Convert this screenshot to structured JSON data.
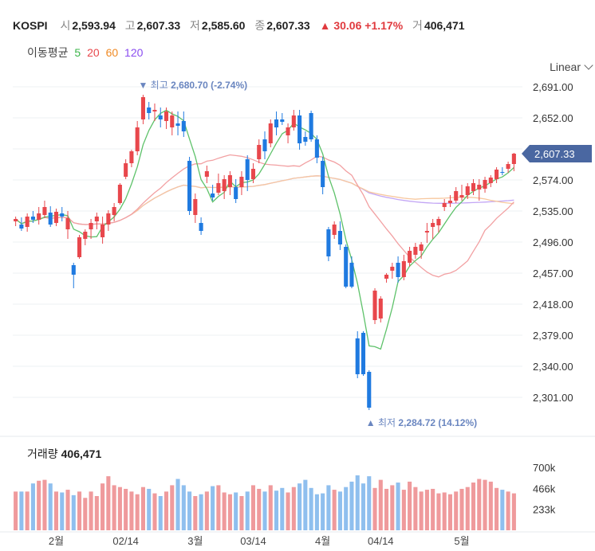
{
  "header": {
    "symbol": "KOSPI",
    "open_label": "시",
    "open": "2,593.94",
    "high_label": "고",
    "high": "2,607.33",
    "low_label": "저",
    "low": "2,585.60",
    "close_label": "종",
    "close": "2,607.33",
    "change_arrow": "▲",
    "change": "30.06",
    "change_pct": "+1.17%",
    "volume_label": "거",
    "volume": "406,471"
  },
  "ma_legend": {
    "label": "이동평균",
    "periods": [
      {
        "text": "5",
        "color": "#3bb54a"
      },
      {
        "text": "20",
        "color": "#e8474c"
      },
      {
        "text": "60",
        "color": "#f08a24"
      },
      {
        "text": "120",
        "color": "#8a4df0"
      }
    ]
  },
  "scale_selector": {
    "label": "Linear"
  },
  "price_badge": "2,607.33",
  "annotations": {
    "high": {
      "arrow": "▼",
      "label": "최고",
      "value": "2,680.70 (-2.74%)"
    },
    "low": {
      "arrow": "▲",
      "label": "최저",
      "value": "2,284.72 (14.12%)"
    }
  },
  "volume_panel": {
    "label": "거래량",
    "value": "406,471"
  },
  "colors": {
    "up": "#e8474c",
    "down": "#1f7ae0",
    "vol_up": "#ef9a9c",
    "vol_down": "#8fbfee",
    "ma5": "#5ec26a",
    "ma20": "#f2a0a2",
    "ma60": "#f7c79e",
    "ma120": "#c3a6f5",
    "badge": "#4a67a1",
    "annotation": "#6a86c0"
  },
  "chart_data": {
    "type": "candlestick",
    "price_axis": {
      "ticks": [
        2691,
        2652,
        2613,
        2574,
        2535,
        2496,
        2457,
        2418,
        2379,
        2340,
        2301
      ],
      "tick_labels": [
        "2,691.00",
        "2,652.00",
        "2,613.00",
        "2,574.00",
        "2,535.00",
        "2,496.00",
        "2,457.00",
        "2,418.00",
        "2,379.00",
        "2,340.00",
        "2,301.00"
      ]
    },
    "volume_axis": {
      "ticks": [
        233,
        466,
        700
      ],
      "tick_labels": [
        "233k",
        "466k",
        "700k"
      ]
    },
    "x_labels": [
      {
        "index": 3,
        "label": "2월"
      },
      {
        "index": 8,
        "label": "02/14"
      },
      {
        "index": 13,
        "label": "3월"
      },
      {
        "index": 17,
        "label": "03/14"
      },
      {
        "index": 22,
        "label": "4월"
      },
      {
        "index": 26,
        "label": "04/14"
      },
      {
        "index": 32,
        "label": "5월"
      }
    ],
    "ohlc": [
      [
        2522,
        2528,
        2516,
        2525
      ],
      [
        2518,
        2527,
        2510,
        2513
      ],
      [
        2515,
        2532,
        2509,
        2528
      ],
      [
        2528,
        2535,
        2520,
        2524
      ],
      [
        2524,
        2540,
        2518,
        2532
      ],
      [
        2530,
        2548,
        2526,
        2540
      ],
      [
        2533,
        2541,
        2515,
        2518
      ],
      [
        2520,
        2538,
        2516,
        2534
      ],
      [
        2532,
        2540,
        2522,
        2528
      ],
      [
        2512,
        2535,
        2500,
        2526
      ],
      [
        2467,
        2470,
        2438,
        2455
      ],
      [
        2477,
        2505,
        2475,
        2502
      ],
      [
        2500,
        2512,
        2492,
        2509
      ],
      [
        2512,
        2525,
        2500,
        2520
      ],
      [
        2522,
        2533,
        2512,
        2528
      ],
      [
        2502,
        2528,
        2494,
        2518
      ],
      [
        2518,
        2536,
        2510,
        2532
      ],
      [
        2530,
        2545,
        2522,
        2540
      ],
      [
        2545,
        2570,
        2543,
        2568
      ],
      [
        2578,
        2600,
        2575,
        2595
      ],
      [
        2595,
        2612,
        2590,
        2610
      ],
      [
        2610,
        2648,
        2605,
        2640
      ],
      [
        2650,
        2681,
        2644,
        2678
      ],
      [
        2665,
        2672,
        2650,
        2658
      ],
      [
        2660,
        2670,
        2648,
        2662
      ],
      [
        2655,
        2665,
        2640,
        2650
      ],
      [
        2648,
        2665,
        2638,
        2660
      ],
      [
        2640,
        2660,
        2630,
        2655
      ],
      [
        2645,
        2660,
        2630,
        2642
      ],
      [
        2648,
        2660,
        2628,
        2635
      ],
      [
        2598,
        2603,
        2530,
        2535
      ],
      [
        2530,
        2557,
        2520,
        2550
      ],
      [
        2520,
        2527,
        2505,
        2510
      ],
      [
        2578,
        2592,
        2570,
        2585
      ],
      [
        2557,
        2568,
        2548,
        2552
      ],
      [
        2558,
        2582,
        2555,
        2570
      ],
      [
        2560,
        2580,
        2550,
        2575
      ],
      [
        2565,
        2585,
        2555,
        2580
      ],
      [
        2565,
        2575,
        2545,
        2550
      ],
      [
        2565,
        2585,
        2555,
        2578
      ],
      [
        2600,
        2605,
        2560,
        2574
      ],
      [
        2575,
        2595,
        2570,
        2588
      ],
      [
        2600,
        2625,
        2595,
        2618
      ],
      [
        2625,
        2635,
        2600,
        2610
      ],
      [
        2620,
        2650,
        2615,
        2645
      ],
      [
        2650,
        2660,
        2630,
        2640
      ],
      [
        2650,
        2658,
        2643,
        2647
      ],
      [
        2630,
        2645,
        2620,
        2640
      ],
      [
        2640,
        2662,
        2636,
        2655
      ],
      [
        2655,
        2662,
        2612,
        2620
      ],
      [
        2628,
        2635,
        2617,
        2622
      ],
      [
        2658,
        2661,
        2622,
        2625
      ],
      [
        2625,
        2630,
        2595,
        2602
      ],
      [
        2598,
        2603,
        2556,
        2565
      ],
      [
        2512,
        2515,
        2472,
        2478
      ],
      [
        2505,
        2522,
        2500,
        2518
      ],
      [
        2510,
        2522,
        2486,
        2493
      ],
      [
        2490,
        2493,
        2438,
        2440
      ],
      [
        2470,
        2478,
        2438,
        2440
      ],
      [
        2375,
        2384,
        2325,
        2330
      ],
      [
        2382,
        2384,
        2328,
        2330
      ],
      [
        2333,
        2335,
        2285,
        2288
      ],
      [
        2398,
        2438,
        2393,
        2435
      ],
      [
        2400,
        2428,
        2395,
        2425
      ],
      [
        2450,
        2457,
        2445,
        2455
      ],
      [
        2460,
        2470,
        2450,
        2465
      ],
      [
        2470,
        2478,
        2445,
        2452
      ],
      [
        2452,
        2480,
        2448,
        2472
      ],
      [
        2470,
        2490,
        2465,
        2485
      ],
      [
        2480,
        2495,
        2475,
        2490
      ],
      [
        2485,
        2496,
        2475,
        2493
      ],
      [
        2508,
        2520,
        2495,
        2510
      ],
      [
        2515,
        2525,
        2500,
        2520
      ],
      [
        2517,
        2528,
        2508,
        2525
      ],
      [
        2540,
        2550,
        2535,
        2545
      ],
      [
        2545,
        2555,
        2540,
        2548
      ],
      [
        2548,
        2565,
        2545,
        2560
      ],
      [
        2552,
        2568,
        2548,
        2555
      ],
      [
        2555,
        2570,
        2550,
        2566
      ],
      [
        2560,
        2575,
        2555,
        2570
      ],
      [
        2562,
        2575,
        2548,
        2568
      ],
      [
        2563,
        2578,
        2558,
        2574
      ],
      [
        2570,
        2580,
        2565,
        2577
      ],
      [
        2575,
        2590,
        2570,
        2587
      ],
      [
        2584,
        2590,
        2580,
        2583
      ],
      [
        2588,
        2597,
        2583,
        2594
      ],
      [
        2594,
        2608,
        2585,
        2607
      ]
    ],
    "volume": [
      430,
      430,
      430,
      520,
      550,
      560,
      520,
      430,
      420,
      450,
      390,
      430,
      360,
      430,
      380,
      520,
      600,
      500,
      480,
      460,
      430,
      400,
      480,
      460,
      410,
      380,
      430,
      500,
      570,
      500,
      430,
      380,
      400,
      430,
      490,
      500,
      420,
      400,
      420,
      380,
      430,
      500,
      460,
      430,
      500,
      440,
      470,
      420,
      480,
      520,
      560,
      470,
      400,
      410,
      500,
      450,
      430,
      480,
      540,
      610,
      520,
      600,
      470,
      560,
      460,
      500,
      530,
      450,
      540,
      480,
      430,
      450,
      460,
      410,
      420,
      400,
      430,
      460,
      480,
      530,
      570,
      560,
      540,
      470,
      450,
      430,
      410
    ],
    "ma5_note": "moving averages shown: 5, 20, 60, 120"
  }
}
